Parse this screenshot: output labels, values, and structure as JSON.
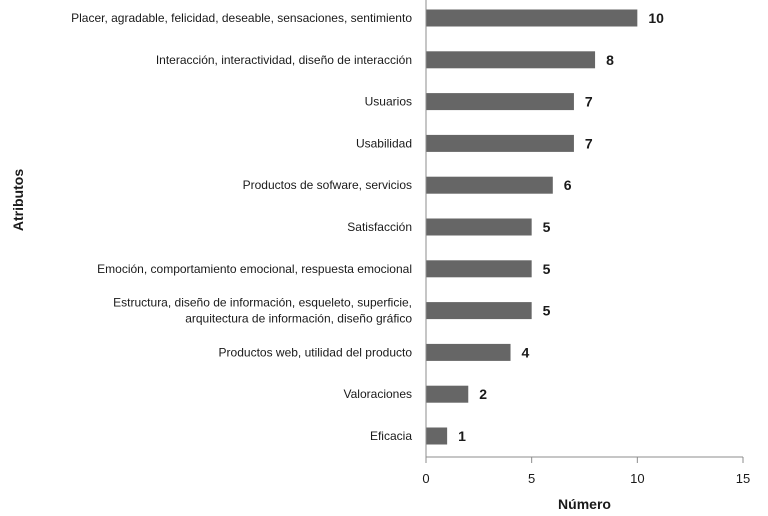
{
  "chart_data": {
    "type": "bar",
    "orientation": "horizontal",
    "categories": [
      [
        "Placer, agradable, felicidad, deseable, sensaciones, sentimiento"
      ],
      [
        "Interacción, interactividad, diseño de interacción"
      ],
      [
        "Usuarios"
      ],
      [
        "Usabilidad"
      ],
      [
        "Productos de sofware, servicios"
      ],
      [
        "Satisfacción"
      ],
      [
        "Emoción, comportamiento emocional, respuesta emocional"
      ],
      [
        "Estructura, diseño de información, esqueleto, superficie,",
        "arquitectura de información, diseño gráfico"
      ],
      [
        "Productos web, utilidad del producto"
      ],
      [
        "Valoraciones"
      ],
      [
        "Eficacia"
      ]
    ],
    "values": [
      10,
      8,
      7,
      7,
      6,
      5,
      5,
      5,
      4,
      2,
      1
    ],
    "xlabel": "Número",
    "ylabel": "Atributos",
    "xlim": [
      0,
      15
    ],
    "xticks": [
      0,
      5,
      10,
      15
    ],
    "grid": false,
    "legend": "none",
    "bar_color": "#666666",
    "axis_color": "#8c8c8c"
  }
}
